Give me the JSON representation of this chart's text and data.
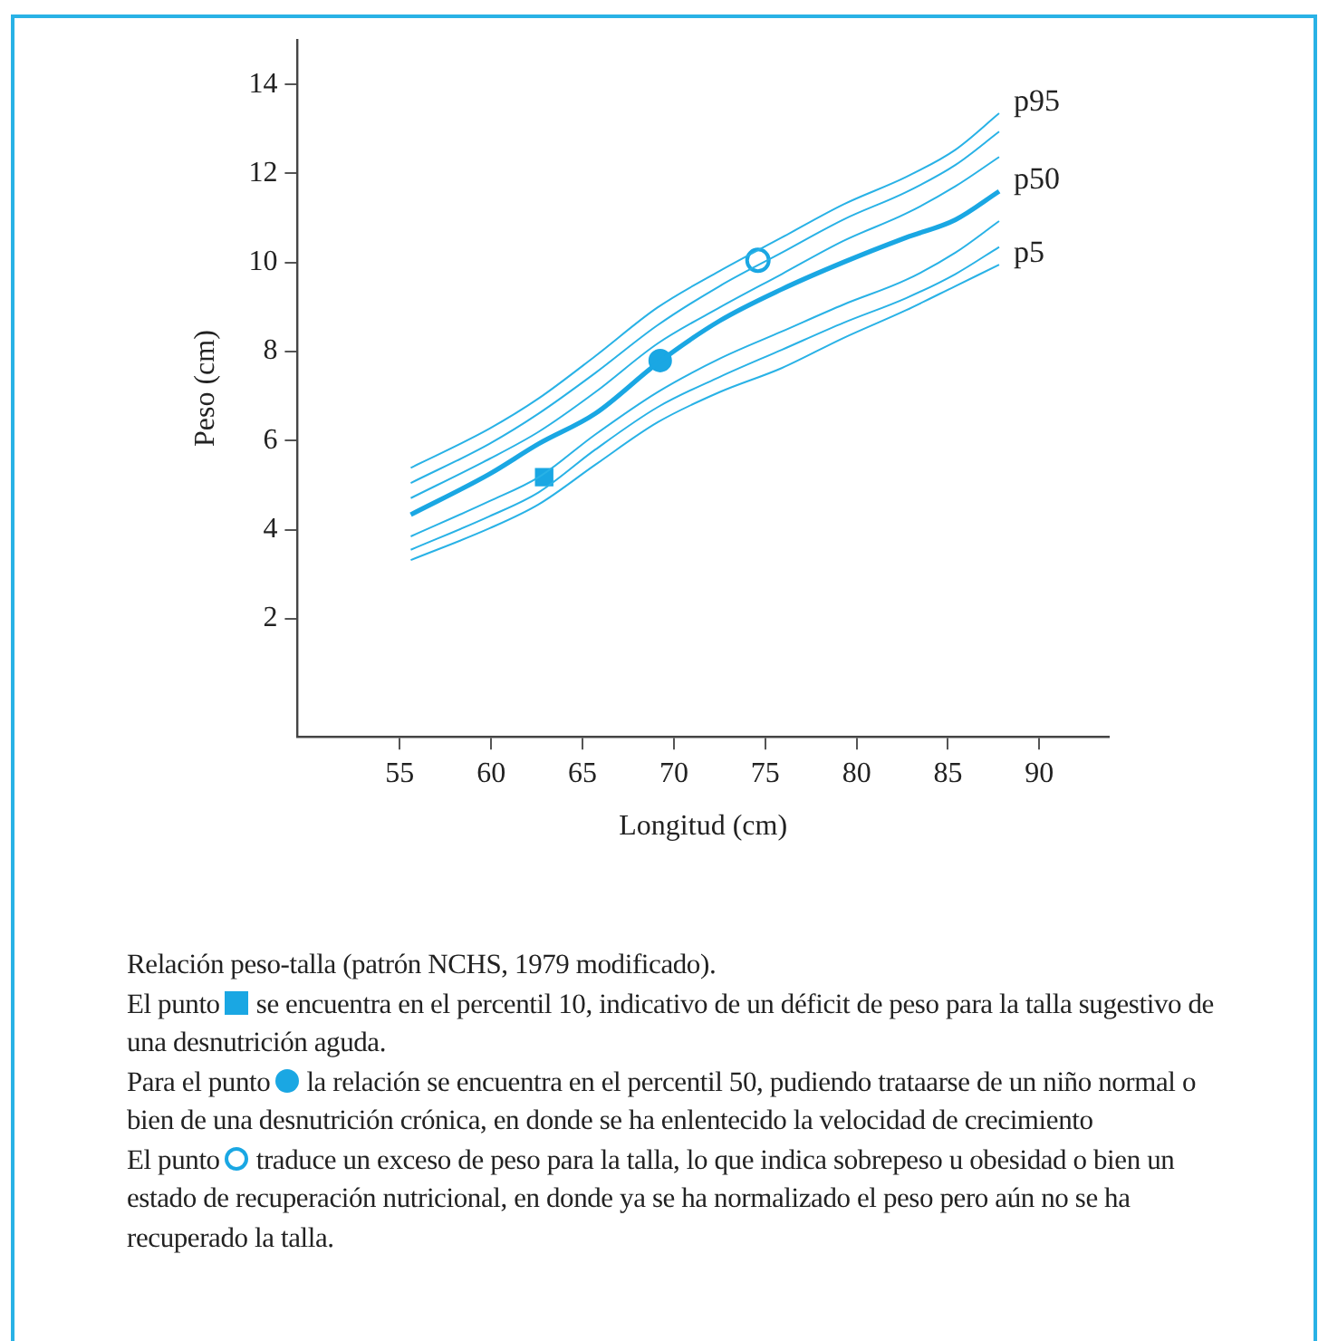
{
  "chart_data": {
    "type": "line",
    "xlabel": "Longitud (cm)",
    "ylabel": "Peso (cm)",
    "x": [
      55.6,
      59.9,
      62.6,
      65.7,
      69.1,
      72.5,
      75.9,
      79.3,
      82.7,
      85.4,
      87.8
    ],
    "xlim": [
      49.4,
      93.8
    ],
    "xticks": [
      55,
      60,
      65,
      70,
      75,
      80,
      85,
      90
    ],
    "ylim": [
      -0.65,
      15
    ],
    "yticks": [
      2,
      4,
      6,
      8,
      10,
      12,
      14
    ],
    "grid": false,
    "legend": false,
    "marker": "none",
    "series": [
      {
        "name": "p95",
        "color": "#29b2e6",
        "values": [
          5.39,
          6.27,
          6.95,
          7.9,
          8.99,
          9.81,
          10.56,
          11.31,
          11.92,
          12.53,
          13.35
        ]
      },
      {
        "color": "#29b2e6",
        "values": [
          5.05,
          5.93,
          6.61,
          7.52,
          8.59,
          9.47,
          10.22,
          10.97,
          11.58,
          12.19,
          12.94
        ]
      },
      {
        "color": "#29b2e6",
        "values": [
          4.71,
          5.59,
          6.2,
          7.09,
          8.18,
          8.99,
          9.74,
          10.49,
          11.1,
          11.71,
          12.37
        ]
      },
      {
        "name": "p50",
        "color": "#1aa7e3",
        "values": [
          4.34,
          5.25,
          5.93,
          6.61,
          7.74,
          8.69,
          9.4,
          10.01,
          10.56,
          10.96,
          11.6
        ]
      },
      {
        "color": "#29b2e6",
        "values": [
          3.85,
          4.64,
          5.18,
          6.14,
          7.09,
          7.84,
          8.45,
          9.06,
          9.61,
          10.22,
          10.93
        ]
      },
      {
        "color": "#29b2e6",
        "values": [
          3.55,
          4.3,
          4.84,
          5.8,
          6.75,
          7.43,
          8.04,
          8.65,
          9.2,
          9.74,
          10.35
        ]
      },
      {
        "name": "p5",
        "color": "#29b2e6",
        "values": [
          3.32,
          4.03,
          4.57,
          5.46,
          6.41,
          7.09,
          7.63,
          8.31,
          8.93,
          9.47,
          9.95
        ]
      },
      {
        "type": "scatter",
        "marker": "square",
        "color": "#1aa7e3",
        "x": [
          62.9
        ],
        "values": [
          5.18
        ]
      },
      {
        "type": "scatter",
        "marker": "circle",
        "color": "#1aa7e3",
        "x": [
          69.25
        ],
        "values": [
          7.8
        ]
      },
      {
        "type": "scatter",
        "marker": "circle",
        "color": "#1aa7e3",
        "x": [
          74.6
        ],
        "values": [
          10.05
        ]
      }
    ],
    "annotations": [
      "Relación peso-talla (patrón NCHS, 1979 modificado).",
      "El punto",
      "se encuentra en el percentil 10, indicativo de un déficit de peso para la talla sugestivo de una desnutrición aguda.",
      "Para el punto",
      "la relación se encuentra en el percentil 50, pudiendo trataarse de un niño normal o bien de una desnutrición crónica, en donde se ha enlentecido la velocidad de crecimiento",
      "El punto",
      "traduce un exceso de peso para la talla, lo que indica sobrepeso u obesidad o bien un estado de recuperación nutricional, en donde ya se ha normalizado el peso pero aún no se ha recuperado la talla."
    ]
  }
}
